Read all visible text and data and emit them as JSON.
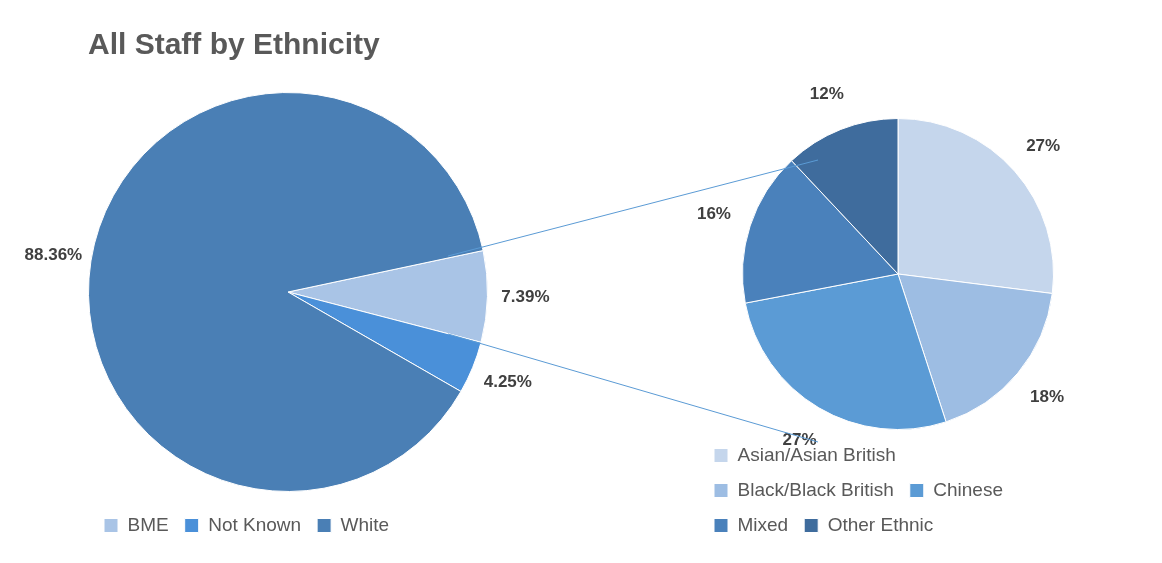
{
  "chart_data": [
    {
      "type": "pie",
      "title": "All Staff by Ethnicity",
      "categories": [
        "BME",
        "Not Known",
        "White"
      ],
      "values": [
        7.39,
        4.25,
        88.36
      ],
      "value_labels": [
        "7.39%",
        "4.25%",
        "88.36%"
      ],
      "colors": [
        "#a9c4e6",
        "#4a90d9",
        "#4a7fb5"
      ],
      "legend": "bottom"
    },
    {
      "type": "pie",
      "categories": [
        "Asian/Asian British",
        "Black/Black British",
        "Chinese",
        "Mixed",
        "Other Ethnic"
      ],
      "values": [
        27,
        18,
        27,
        16,
        12
      ],
      "value_labels": [
        "27%",
        "18%",
        "27%",
        "16%",
        "12%"
      ],
      "colors": [
        "#c5d6ec",
        "#9dbde3",
        "#5b9bd5",
        "#4a81bb",
        "#3f6c9d"
      ],
      "legend": "bottom"
    }
  ]
}
